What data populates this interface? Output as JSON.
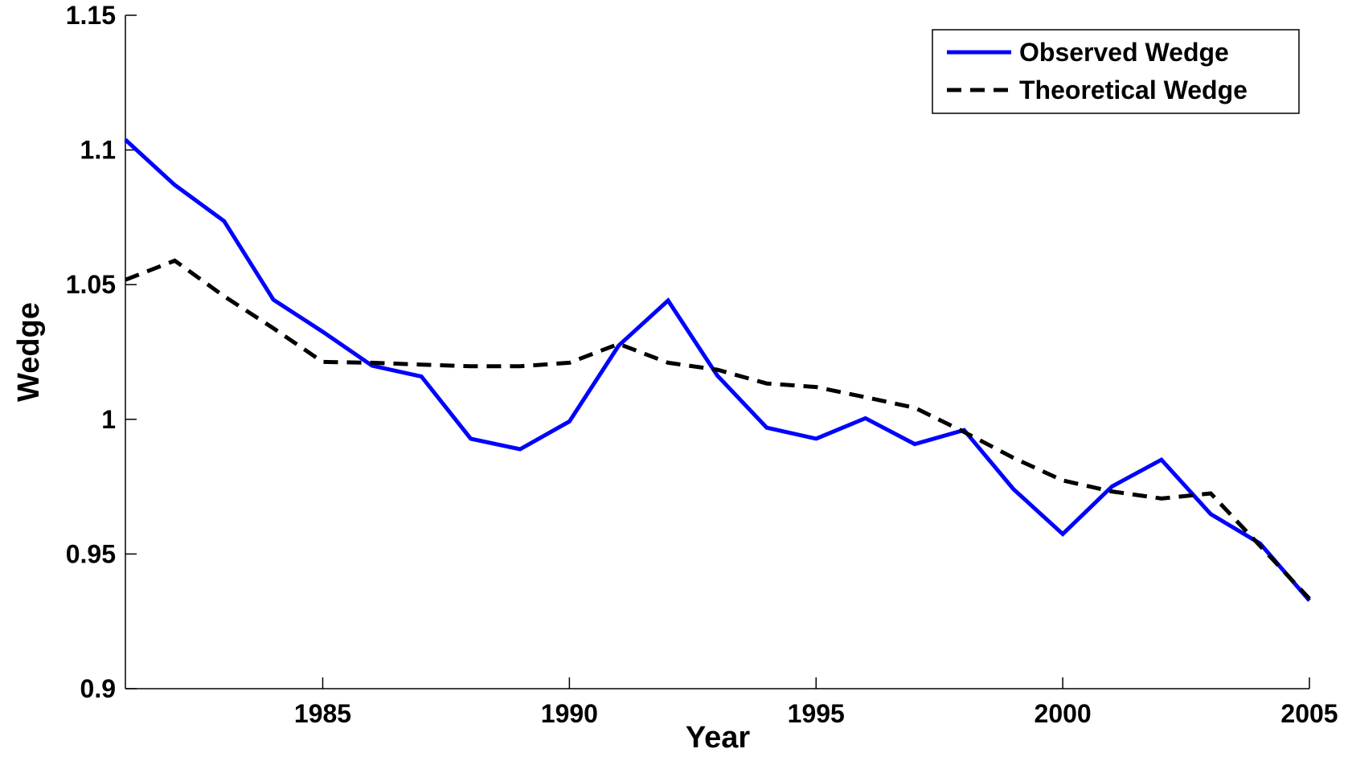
{
  "chart_data": {
    "type": "line",
    "x_label": "Year",
    "y_label": "Wedge",
    "x": [
      1981,
      1982,
      1983,
      1984,
      1985,
      1986,
      1987,
      1988,
      1989,
      1990,
      1991,
      1992,
      1993,
      1994,
      1995,
      1996,
      1997,
      1998,
      1999,
      2000,
      2001,
      2002,
      2003,
      2004,
      2005
    ],
    "series": [
      {
        "name": "Observed Wedge",
        "color": "#0000ff",
        "dash": "solid",
        "values": [
          1.1038,
          1.087,
          1.0736,
          1.0444,
          1.0325,
          1.0199,
          1.0159,
          0.9928,
          0.9889,
          0.9992,
          1.0274,
          1.0441,
          1.0162,
          0.9969,
          0.9928,
          1.0004,
          0.9908,
          0.996,
          0.9741,
          0.9574,
          0.9751,
          0.985,
          0.9648,
          0.9539,
          0.9327
        ]
      },
      {
        "name": "Theoretical Wedge",
        "color": "#000000",
        "dash": "dashed",
        "values": [
          1.0518,
          1.0589,
          1.0457,
          1.0338,
          1.0213,
          1.021,
          1.0203,
          1.0197,
          1.0197,
          1.021,
          1.028,
          1.021,
          1.0184,
          1.0133,
          1.012,
          1.0082,
          1.0043,
          0.9953,
          0.9857,
          0.9773,
          0.9732,
          0.9706,
          0.9725,
          0.953,
          0.9334
        ]
      }
    ],
    "xlim": [
      1981,
      2005
    ],
    "xticks": [
      1985,
      1990,
      1995,
      2000,
      2005
    ],
    "ylim": [
      0.9,
      1.15
    ],
    "yticks": [
      0.9,
      0.95,
      1,
      1.05,
      1.1,
      1.15
    ],
    "legend": "top-right",
    "grid": false
  }
}
